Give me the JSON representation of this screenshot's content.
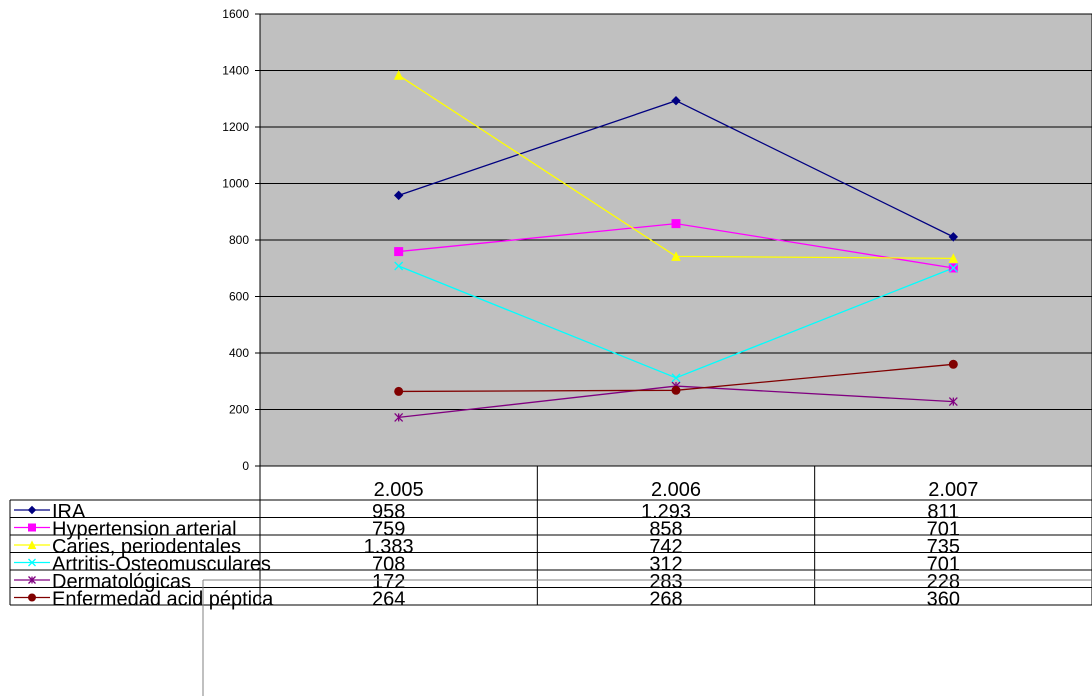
{
  "chart_data": {
    "type": "line",
    "categories": [
      "2.005",
      "2.006",
      "2.007"
    ],
    "ylim": [
      0,
      1600
    ],
    "yticks": [
      0,
      200,
      400,
      600,
      800,
      1000,
      1200,
      1400,
      1600
    ],
    "grid": true,
    "legend": "bottom data table",
    "plot_background": "#C0C0C0",
    "series": [
      {
        "name": "IRA",
        "values": [
          958,
          1293,
          811
        ],
        "labels": [
          "958",
          "1.293",
          "811"
        ],
        "color": "#000080",
        "marker": "diamond"
      },
      {
        "name": "Hypertension arterial",
        "values": [
          759,
          858,
          701
        ],
        "labels": [
          "759",
          "858",
          "701"
        ],
        "color": "#FF00FF",
        "marker": "square"
      },
      {
        "name": "Caries, periodentales",
        "values": [
          1383,
          742,
          735
        ],
        "labels": [
          "1.383",
          "742",
          "735"
        ],
        "color": "#FFFF00",
        "marker": "triangle"
      },
      {
        "name": "Artritis-Osteomusculares",
        "values": [
          708,
          312,
          701
        ],
        "labels": [
          "708",
          "312",
          "701"
        ],
        "color": "#00FFFF",
        "marker": "x"
      },
      {
        "name": "Dermatológicas",
        "values": [
          172,
          283,
          228
        ],
        "labels": [
          "172",
          "283",
          "228"
        ],
        "color": "#800080",
        "marker": "star"
      },
      {
        "name": "Enfermedad  acid péptica",
        "values": [
          264,
          268,
          360
        ],
        "labels": [
          "264",
          "268",
          "360"
        ],
        "color": "#800000",
        "marker": "circle"
      }
    ]
  }
}
